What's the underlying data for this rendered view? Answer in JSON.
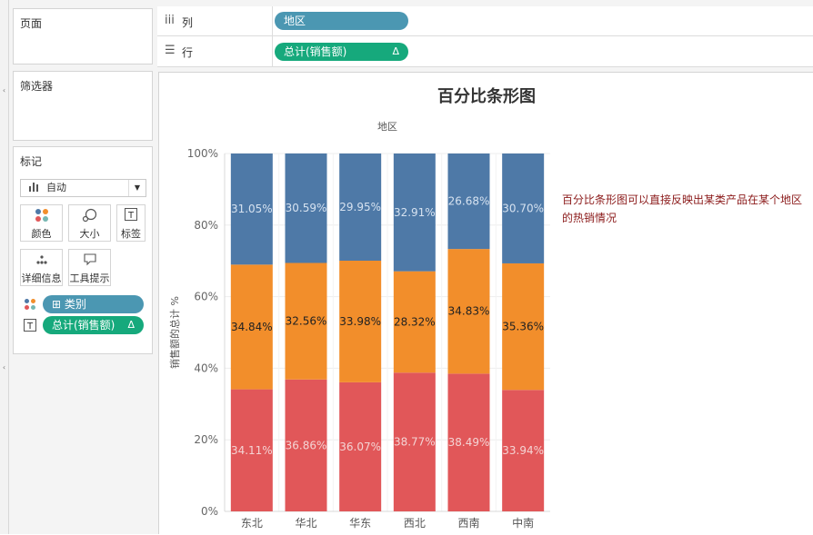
{
  "panels": {
    "pages_title": "页面",
    "filters_title": "筛选器",
    "marks_title": "标记"
  },
  "shelves": {
    "columns_label": "列",
    "columns_pill": "地区",
    "rows_label": "行",
    "rows_pill": "总计(销售额)",
    "rows_pill_delta": "Δ"
  },
  "marks": {
    "mark_type": "自动",
    "buttons": [
      "颜色",
      "大小",
      "标签",
      "详细信息",
      "工具提示"
    ],
    "fields": [
      {
        "name": "类别",
        "color": "#4b97b2",
        "prefix": "⊞"
      },
      {
        "name": "总计(销售额)",
        "color": "#16a97c",
        "delta": "Δ"
      }
    ]
  },
  "chart_title": "百分比条形图",
  "annotation": "百分比条形图可以直接反映出某类产品在某个地区的热销情况",
  "chart_data": {
    "type": "bar",
    "stacked": true,
    "title": "百分比条形图",
    "xlabel": "地区",
    "ylabel": "销售额的总计 %",
    "categories": [
      "东北",
      "华北",
      "华东",
      "西北",
      "西南",
      "中南"
    ],
    "y_ticks": [
      "0%",
      "20%",
      "40%",
      "60%",
      "80%",
      "100%"
    ],
    "ylim": [
      0,
      100
    ],
    "series": [
      {
        "color": "#e15759",
        "values": [
          34.11,
          36.86,
          36.07,
          38.77,
          38.49,
          33.94
        ],
        "labels": [
          "34.11%",
          "36.86%",
          "36.07%",
          "38.77%",
          "38.49%",
          "33.94%"
        ],
        "label_color": "#f4d4d4"
      },
      {
        "color": "#f28e2b",
        "values": [
          34.84,
          32.56,
          33.98,
          28.32,
          34.83,
          35.36
        ],
        "labels": [
          "34.84%",
          "32.56%",
          "33.98%",
          "28.32%",
          "34.83%",
          "35.36%"
        ],
        "label_color": "#222222"
      },
      {
        "color": "#4e79a7",
        "values": [
          31.05,
          30.59,
          29.95,
          32.91,
          26.68,
          30.7
        ],
        "labels": [
          "31.05%",
          "30.59%",
          "29.95%",
          "32.91%",
          "26.68%",
          "30.70%"
        ],
        "label_color": "#d6e2f0"
      }
    ]
  }
}
